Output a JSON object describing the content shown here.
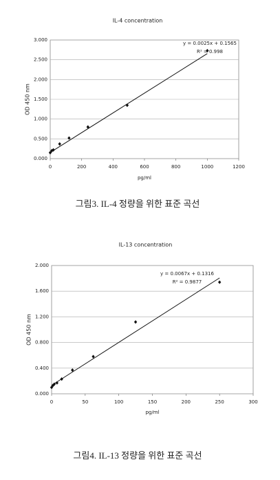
{
  "chart_data": [
    {
      "type": "scatter",
      "title": "IL-4 concentration",
      "caption": "그림3. IL-4 정량을 위한 표준 곡선",
      "x_label": "pg/ml",
      "y_label": "OD 450 nm",
      "x": [
        0,
        10,
        20,
        60,
        120,
        240,
        490,
        1000
      ],
      "values": [
        0.15,
        0.2,
        0.22,
        0.37,
        0.52,
        0.8,
        1.35,
        2.73
      ],
      "color": "#111",
      "trendline": {
        "slope": 0.0025,
        "intercept": 0.1565
      },
      "annotations": [
        "y = 0.0025x + 0.1565",
        "R² = 0.998"
      ],
      "xlim": [
        0,
        1200
      ],
      "xticks": [
        0,
        200,
        400,
        600,
        800,
        1000,
        1200
      ],
      "ylim": [
        0,
        3
      ],
      "yticks": [
        {
          "value": 0,
          "label": "0.000"
        },
        {
          "value": 0.5,
          "label": "0.500"
        },
        {
          "value": 1,
          "label": "1.000"
        },
        {
          "value": 1.5,
          "label": "1.500"
        },
        {
          "value": 2,
          "label": "2.000"
        },
        {
          "value": 2.5,
          "label": "2.500"
        },
        {
          "value": 3,
          "label": "3.000"
        }
      ],
      "grid": true
    },
    {
      "type": "scatter",
      "title": "IL-13 concentration",
      "caption": "그림4. IL-13 정량을 위한 표준 곡선",
      "x_label": "pg/ml",
      "y_label": "OD 450 nm",
      "x": [
        0,
        2,
        4,
        8,
        15,
        31,
        62,
        125,
        250
      ],
      "values": [
        0.1,
        0.13,
        0.15,
        0.17,
        0.23,
        0.37,
        0.58,
        1.12,
        1.74
      ],
      "color": "#111",
      "trendline": {
        "slope": 0.0067,
        "intercept": 0.1316
      },
      "annotations": [
        "y = 0.0067x + 0.1316",
        "R² = 0.9877"
      ],
      "xlim": [
        0,
        300
      ],
      "xticks": [
        0,
        50,
        100,
        150,
        200,
        250,
        300
      ],
      "ylim": [
        0,
        2
      ],
      "yticks": [
        {
          "value": 0,
          "label": "0.000"
        },
        {
          "value": 0.4,
          "label": "0.400"
        },
        {
          "value": 0.8,
          "label": "0.800"
        },
        {
          "value": 1.2,
          "label": "1.200"
        },
        {
          "value": 1.6,
          "label": "1.600"
        },
        {
          "value": 2,
          "label": "2.000"
        }
      ],
      "grid": true
    }
  ]
}
